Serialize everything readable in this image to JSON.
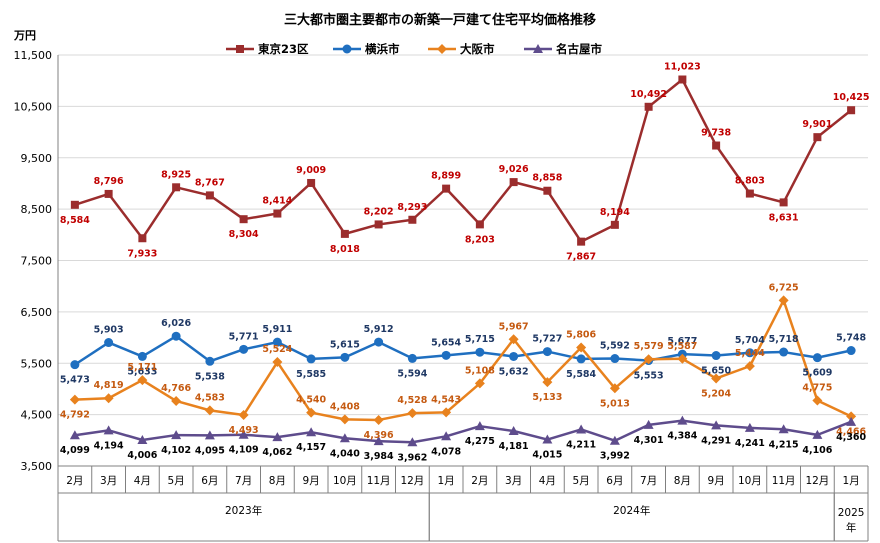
{
  "chart_data": {
    "type": "line",
    "title": "三大都市圏主要都市の新築一戸建て住宅平均価格推移",
    "ylabel": "万円",
    "ylim": [
      3500,
      11500
    ],
    "yticks": [
      3500,
      4500,
      5500,
      6500,
      7500,
      8500,
      9500,
      10500,
      11500
    ],
    "ytick_labels": [
      "3,500",
      "4,500",
      "5,500",
      "6,500",
      "7,500",
      "8,500",
      "9,500",
      "10,500",
      "11,500"
    ],
    "categories": [
      "2月",
      "3月",
      "4月",
      "5月",
      "6月",
      "7月",
      "8月",
      "9月",
      "10月",
      "11月",
      "12月",
      "1月",
      "2月",
      "3月",
      "4月",
      "5月",
      "6月",
      "7月",
      "8月",
      "9月",
      "10月",
      "11月",
      "12月",
      "1月"
    ],
    "year_groups": [
      {
        "label": "2023年",
        "start": 0,
        "end": 10
      },
      {
        "label": "2024年",
        "start": 11,
        "end": 22
      },
      {
        "label": "2025年",
        "start": 23,
        "end": 23
      }
    ],
    "grid": true,
    "legend": "top",
    "series": [
      {
        "name": "東京23区",
        "color": "#9b2d2d",
        "label_color": "#c00000",
        "marker": "square",
        "values": [
          8584,
          8796,
          7933,
          8925,
          8767,
          8304,
          8414,
          9009,
          8018,
          8202,
          8293,
          8899,
          8203,
          9026,
          8858,
          7867,
          8194,
          10492,
          11023,
          9738,
          8803,
          8631,
          9901,
          10425
        ],
        "labels": [
          "8,584",
          "8,796",
          "7,933",
          "8,925",
          "8,767",
          "8,304",
          "8,414",
          "9,009",
          "8,018",
          "8,202",
          "8,293",
          "8,899",
          "8,203",
          "9,026",
          "8,858",
          "7,867",
          "8,194",
          "10,492",
          "11,023",
          "9,738",
          "8,803",
          "8,631",
          "9,901",
          "10,425"
        ]
      },
      {
        "name": "横浜市",
        "color": "#1f6fc0",
        "label_color": "#1f3864",
        "marker": "circle",
        "values": [
          5473,
          5903,
          5633,
          6026,
          5538,
          5771,
          5911,
          5585,
          5615,
          5912,
          5594,
          5654,
          5715,
          5632,
          5727,
          5584,
          5592,
          5553,
          5677,
          5650,
          5704,
          5718,
          5609,
          5748
        ],
        "labels": [
          "5,473",
          "5,903",
          "5,633",
          "6,026",
          "5,538",
          "5,771",
          "5,911",
          "5,585",
          "5,615",
          "5,912",
          "5,594",
          "5,654",
          "5,715",
          "5,632",
          "5,727",
          "5,584",
          "5,592",
          "5,553",
          "5,677",
          "5,650",
          "5,704",
          "5,718",
          "5,609",
          "5,748"
        ]
      },
      {
        "name": "大阪市",
        "color": "#e8821e",
        "label_color": "#c55a11",
        "marker": "diamond",
        "values": [
          4792,
          4819,
          5171,
          4766,
          4583,
          4493,
          5524,
          4540,
          4408,
          4396,
          4528,
          4543,
          5108,
          5967,
          5133,
          5806,
          5013,
          5579,
          5587,
          5204,
          5444,
          6725,
          4775,
          4466
        ],
        "labels": [
          "4,792",
          "4,819",
          "5,171",
          "4,766",
          "4,583",
          "4,493",
          "5,524",
          "4,540",
          "4,408",
          "4,396",
          "4,528",
          "4,543",
          "5,108",
          "5,967",
          "5,133",
          "5,806",
          "5,013",
          "5,579",
          "5,587",
          "5,204",
          "5,444",
          "6,725",
          "4,775",
          "4,466"
        ]
      },
      {
        "name": "名古屋市",
        "color": "#5e4c8c",
        "label_color": "#000000",
        "marker": "triangle",
        "values": [
          4099,
          4194,
          4006,
          4102,
          4095,
          4109,
          4062,
          4157,
          4040,
          3984,
          3962,
          4078,
          4275,
          4181,
          4015,
          4211,
          3992,
          4301,
          4384,
          4291,
          4241,
          4215,
          4106,
          4360
        ],
        "labels": [
          "4,099",
          "4,194",
          "4,006",
          "4,102",
          "4,095",
          "4,109",
          "4,062",
          "4,157",
          "4,040",
          "3,984",
          "3,962",
          "4,078",
          "4,275",
          "4,181",
          "4,015",
          "4,211",
          "3,992",
          "4,301",
          "4,384",
          "4,291",
          "4,241",
          "4,215",
          "4,106",
          "4,360"
        ]
      }
    ]
  }
}
